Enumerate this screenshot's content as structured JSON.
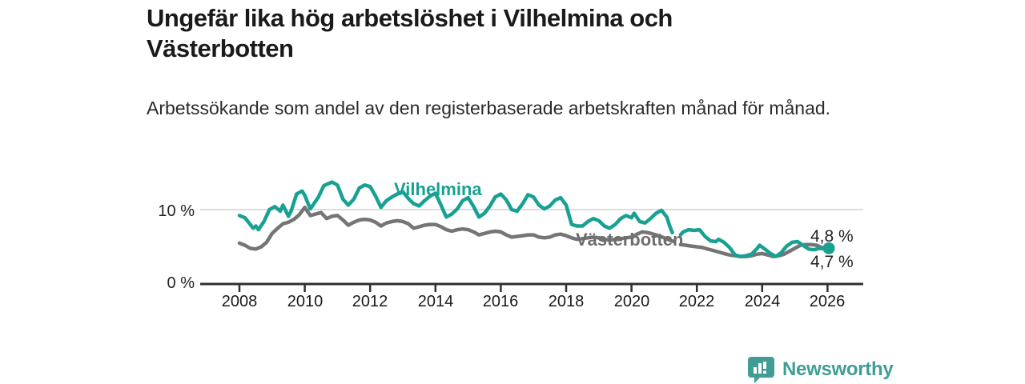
{
  "header": {
    "title": "Ungefär lika hög arbetslöshet i Vilhelmina och Västerbotten",
    "subtitle": "Arbetssökande som andel av den registerbaserade arbetskraften månad för månad."
  },
  "chart_data": {
    "type": "line",
    "title": "Ungefär lika hög arbetslöshet i Vilhelmina och Västerbotten",
    "subtitle": "Arbetssökande som andel av den registerbaserade arbetskraften månad för månad.",
    "xlabel": "",
    "ylabel": "%",
    "grid": "horizontal-10-only",
    "legend_position": "inline-labels",
    "xlim": [
      2006.8,
      2027.1
    ],
    "ylim": [
      0,
      15.5
    ],
    "x_ticks": [
      2008,
      2010,
      2012,
      2014,
      2016,
      2018,
      2020,
      2022,
      2024,
      2026
    ],
    "y_ticks": [
      {
        "value": 10,
        "label": "10 %",
        "gridline": true
      },
      {
        "value": 0,
        "label": "0 %",
        "gridline": false
      }
    ],
    "note": "both series have a data gap between 2021.3 and 2021.5",
    "series": [
      {
        "name": "Vilhelmina",
        "color": "#18a193",
        "end_label": "4,8 %",
        "end_value": 4.8,
        "end_dot": true,
        "segments": [
          [
            [
              2008.0,
              9.2
            ],
            [
              2008.17,
              8.9
            ],
            [
              2008.33,
              8.0
            ],
            [
              2008.42,
              7.5
            ],
            [
              2008.5,
              7.8
            ],
            [
              2008.58,
              7.3
            ],
            [
              2008.75,
              8.4
            ],
            [
              2008.92,
              10.0
            ],
            [
              2009.08,
              10.4
            ],
            [
              2009.25,
              9.8
            ],
            [
              2009.33,
              10.6
            ],
            [
              2009.5,
              9.1
            ],
            [
              2009.58,
              9.8
            ],
            [
              2009.75,
              12.1
            ],
            [
              2009.92,
              12.5
            ],
            [
              2010.0,
              11.9
            ],
            [
              2010.17,
              10.1
            ],
            [
              2010.25,
              10.6
            ],
            [
              2010.42,
              11.7
            ],
            [
              2010.58,
              13.2
            ],
            [
              2010.83,
              13.7
            ],
            [
              2011.0,
              13.3
            ],
            [
              2011.17,
              11.4
            ],
            [
              2011.33,
              10.6
            ],
            [
              2011.5,
              11.4
            ],
            [
              2011.67,
              12.9
            ],
            [
              2011.83,
              13.3
            ],
            [
              2012.0,
              13.1
            ],
            [
              2012.17,
              11.8
            ],
            [
              2012.33,
              10.3
            ],
            [
              2012.5,
              11.2
            ],
            [
              2012.67,
              11.7
            ],
            [
              2012.83,
              12.1
            ],
            [
              2013.0,
              12.4
            ],
            [
              2013.17,
              11.5
            ],
            [
              2013.33,
              10.8
            ],
            [
              2013.5,
              10.5
            ],
            [
              2013.67,
              11.2
            ],
            [
              2013.83,
              11.8
            ],
            [
              2014.0,
              12.2
            ],
            [
              2014.17,
              10.6
            ],
            [
              2014.33,
              9.0
            ],
            [
              2014.5,
              9.4
            ],
            [
              2014.67,
              10.1
            ],
            [
              2014.83,
              11.2
            ],
            [
              2015.0,
              11.6
            ],
            [
              2015.17,
              10.4
            ],
            [
              2015.33,
              9.0
            ],
            [
              2015.5,
              9.5
            ],
            [
              2015.67,
              10.5
            ],
            [
              2015.83,
              11.7
            ],
            [
              2016.0,
              12.1
            ],
            [
              2016.17,
              11.3
            ],
            [
              2016.33,
              10.0
            ],
            [
              2016.5,
              9.8
            ],
            [
              2016.67,
              10.8
            ],
            [
              2016.83,
              12.0
            ],
            [
              2017.0,
              11.7
            ],
            [
              2017.17,
              10.6
            ],
            [
              2017.33,
              10.1
            ],
            [
              2017.5,
              10.5
            ],
            [
              2017.67,
              11.3
            ],
            [
              2017.83,
              11.6
            ],
            [
              2018.0,
              10.6
            ],
            [
              2018.17,
              8.0
            ],
            [
              2018.33,
              7.8
            ],
            [
              2018.5,
              7.8
            ],
            [
              2018.67,
              8.4
            ],
            [
              2018.83,
              8.8
            ],
            [
              2019.0,
              8.5
            ],
            [
              2019.17,
              7.8
            ],
            [
              2019.33,
              7.5
            ],
            [
              2019.5,
              8.0
            ],
            [
              2019.67,
              8.8
            ],
            [
              2019.83,
              9.2
            ],
            [
              2020.0,
              8.9
            ],
            [
              2020.08,
              9.5
            ],
            [
              2020.25,
              8.4
            ],
            [
              2020.42,
              8.2
            ],
            [
              2020.58,
              8.8
            ],
            [
              2020.75,
              9.5
            ],
            [
              2020.92,
              9.9
            ],
            [
              2021.08,
              9.0
            ],
            [
              2021.17,
              7.8
            ],
            [
              2021.25,
              6.9
            ]
          ],
          [
            [
              2021.5,
              6.6
            ],
            [
              2021.58,
              7.0
            ],
            [
              2021.75,
              7.3
            ],
            [
              2021.92,
              7.2
            ],
            [
              2022.08,
              7.3
            ],
            [
              2022.25,
              6.4
            ],
            [
              2022.42,
              5.8
            ],
            [
              2022.58,
              5.7
            ],
            [
              2022.67,
              6.0
            ],
            [
              2022.83,
              5.6
            ],
            [
              2023.0,
              4.9
            ],
            [
              2023.17,
              3.9
            ],
            [
              2023.33,
              3.7
            ],
            [
              2023.5,
              3.8
            ],
            [
              2023.67,
              4.0
            ],
            [
              2023.83,
              4.7
            ],
            [
              2023.92,
              5.2
            ],
            [
              2024.08,
              4.7
            ],
            [
              2024.25,
              4.1
            ],
            [
              2024.42,
              3.7
            ],
            [
              2024.58,
              4.2
            ],
            [
              2024.75,
              5.1
            ],
            [
              2024.92,
              5.6
            ],
            [
              2025.08,
              5.7
            ],
            [
              2025.25,
              5.2
            ],
            [
              2025.42,
              4.7
            ],
            [
              2025.58,
              4.6
            ],
            [
              2025.75,
              4.8
            ],
            [
              2025.92,
              4.7
            ],
            [
              2026.04,
              4.8
            ]
          ]
        ]
      },
      {
        "name": "Västerbotten",
        "color": "#757575",
        "end_label": "4,7 %",
        "end_value": 4.7,
        "end_dot": false,
        "segments": [
          [
            [
              2008.0,
              5.5
            ],
            [
              2008.17,
              5.2
            ],
            [
              2008.33,
              4.8
            ],
            [
              2008.5,
              4.7
            ],
            [
              2008.67,
              5.0
            ],
            [
              2008.83,
              5.6
            ],
            [
              2009.0,
              6.8
            ],
            [
              2009.17,
              7.5
            ],
            [
              2009.33,
              8.1
            ],
            [
              2009.5,
              8.3
            ],
            [
              2009.67,
              8.7
            ],
            [
              2009.83,
              9.3
            ],
            [
              2010.0,
              10.3
            ],
            [
              2010.17,
              9.2
            ],
            [
              2010.33,
              9.4
            ],
            [
              2010.5,
              9.6
            ],
            [
              2010.67,
              8.8
            ],
            [
              2010.83,
              9.1
            ],
            [
              2011.0,
              9.2
            ],
            [
              2011.17,
              8.6
            ],
            [
              2011.33,
              7.9
            ],
            [
              2011.5,
              8.3
            ],
            [
              2011.67,
              8.6
            ],
            [
              2011.83,
              8.7
            ],
            [
              2012.0,
              8.6
            ],
            [
              2012.17,
              8.3
            ],
            [
              2012.33,
              7.8
            ],
            [
              2012.5,
              8.2
            ],
            [
              2012.67,
              8.4
            ],
            [
              2012.83,
              8.5
            ],
            [
              2013.0,
              8.4
            ],
            [
              2013.17,
              8.1
            ],
            [
              2013.33,
              7.5
            ],
            [
              2013.5,
              7.7
            ],
            [
              2013.67,
              7.9
            ],
            [
              2013.83,
              8.0
            ],
            [
              2014.0,
              8.0
            ],
            [
              2014.17,
              7.7
            ],
            [
              2014.33,
              7.3
            ],
            [
              2014.5,
              7.1
            ],
            [
              2014.67,
              7.3
            ],
            [
              2014.83,
              7.4
            ],
            [
              2015.0,
              7.3
            ],
            [
              2015.17,
              7.0
            ],
            [
              2015.33,
              6.6
            ],
            [
              2015.5,
              6.8
            ],
            [
              2015.67,
              7.0
            ],
            [
              2015.83,
              7.1
            ],
            [
              2016.0,
              7.0
            ],
            [
              2016.17,
              6.6
            ],
            [
              2016.33,
              6.3
            ],
            [
              2016.5,
              6.4
            ],
            [
              2016.67,
              6.5
            ],
            [
              2016.83,
              6.6
            ],
            [
              2017.0,
              6.6
            ],
            [
              2017.17,
              6.3
            ],
            [
              2017.33,
              6.2
            ],
            [
              2017.5,
              6.3
            ],
            [
              2017.67,
              6.6
            ],
            [
              2017.83,
              6.7
            ],
            [
              2018.0,
              6.5
            ],
            [
              2018.17,
              6.2
            ],
            [
              2018.33,
              6.0
            ],
            [
              2018.5,
              6.1
            ],
            [
              2018.67,
              6.2
            ],
            [
              2018.83,
              6.3
            ],
            [
              2019.0,
              6.2
            ],
            [
              2019.17,
              6.0
            ],
            [
              2019.33,
              5.9
            ],
            [
              2019.5,
              6.0
            ],
            [
              2019.67,
              6.1
            ],
            [
              2019.83,
              6.2
            ],
            [
              2020.0,
              6.3
            ],
            [
              2020.17,
              6.7
            ],
            [
              2020.33,
              7.0
            ],
            [
              2020.5,
              6.9
            ],
            [
              2020.67,
              6.7
            ],
            [
              2020.83,
              6.5
            ],
            [
              2021.0,
              6.2
            ],
            [
              2021.17,
              5.9
            ],
            [
              2021.3,
              5.7
            ]
          ],
          [
            [
              2021.5,
              5.3
            ],
            [
              2021.67,
              5.2
            ],
            [
              2021.83,
              5.1
            ],
            [
              2022.0,
              5.0
            ],
            [
              2022.17,
              4.9
            ],
            [
              2022.33,
              4.7
            ],
            [
              2022.5,
              4.5
            ],
            [
              2022.67,
              4.3
            ],
            [
              2022.83,
              4.1
            ],
            [
              2023.0,
              3.9
            ],
            [
              2023.17,
              3.8
            ],
            [
              2023.33,
              3.7
            ],
            [
              2023.5,
              3.7
            ],
            [
              2023.67,
              3.8
            ],
            [
              2023.83,
              4.0
            ],
            [
              2024.0,
              4.1
            ],
            [
              2024.17,
              3.9
            ],
            [
              2024.33,
              3.7
            ],
            [
              2024.5,
              3.8
            ],
            [
              2024.67,
              4.0
            ],
            [
              2024.83,
              4.4
            ],
            [
              2025.0,
              4.8
            ],
            [
              2025.17,
              5.2
            ],
            [
              2025.33,
              5.3
            ],
            [
              2025.5,
              5.3
            ],
            [
              2025.67,
              5.2
            ],
            [
              2025.83,
              4.9
            ],
            [
              2026.04,
              4.7
            ]
          ]
        ]
      }
    ]
  },
  "footer": {
    "brand": "Newsworthy",
    "brand_color": "#3f9d95",
    "logo_icon": "bar-chart-speech-bubble-icon"
  }
}
